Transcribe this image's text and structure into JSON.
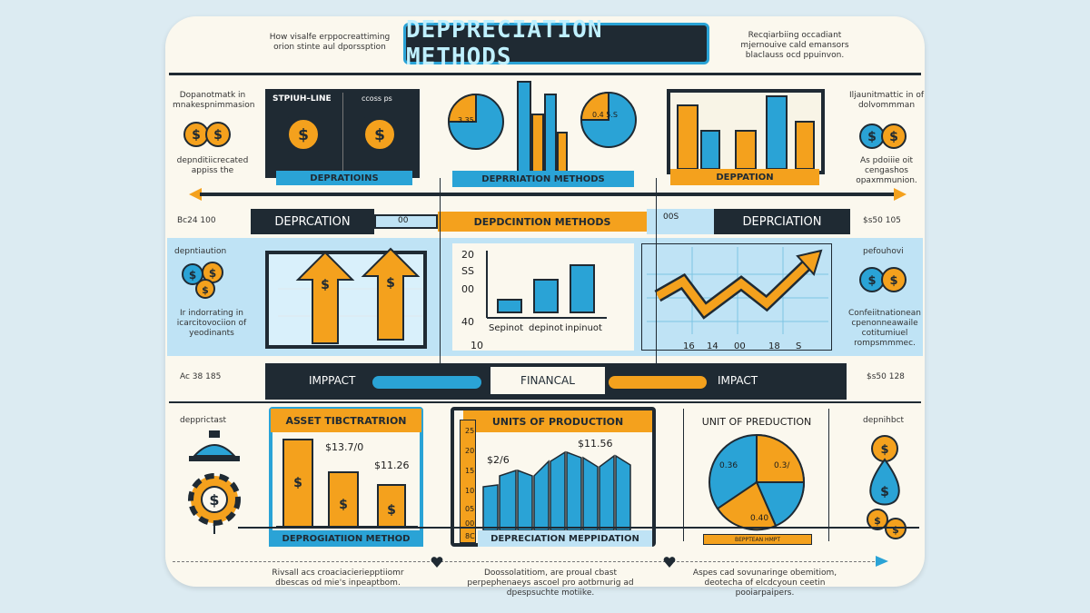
{
  "title": "DEPPRECIATION METHODS",
  "top_notes": {
    "left": "How visalfe erppocreattiming orion stinte aul dporssption",
    "right": "Recqiarbiing occadiant mjernouive cald emansors blaclauss ocd ppuinvon."
  },
  "left_notes": {
    "n1": "Dopanotmatk in mnakespnimmasion",
    "n2": "depnditiicrecated appiss the",
    "n3": "Bc24 100",
    "n4": "depntiaution",
    "n5": "Ir indorrating in icarcitovociion of yeodinants",
    "n6": "Ac 38 185",
    "n7": "depprictast"
  },
  "right_notes": {
    "n1": "Iljaunitmattic in of dolvommman",
    "n2": "As pdoiiie oit cengashos opaxmmunion.",
    "n3": "$s50 105",
    "n4": "pefouhovi",
    "n5": "Confeiitnationean cpenonneawaile cotitumiuel rompsmmmec.",
    "n6": "$s50 128",
    "n7": "depnihbct"
  },
  "row1": {
    "panel1_head_left": "STPIUH–LINE",
    "panel1_head_right": "ccoss ps",
    "panel1_strip": "DEPRATIOINS",
    "panel2_strip": "DEPRRIATION METHODS",
    "panel2_pie1": "3.35",
    "panel2_pie2": "0.4 5.S",
    "panel3_strip": "DEPPATION"
  },
  "bar1": {
    "left": "DEPRCATION",
    "mid_small": "00",
    "mid": "DEPDCINTION METHODS",
    "mid_right": "00S",
    "right": "DEPRCIATION"
  },
  "row2": {
    "chart_y_labels": [
      "20",
      "SS",
      "00",
      "40"
    ],
    "chart_x_start": "10",
    "chart_x_labels": [
      "Sepinot",
      "depinot",
      "inpinuot"
    ],
    "right_x_labels": [
      "16",
      "14",
      "00",
      "18",
      "S"
    ]
  },
  "bar2": {
    "left": "IMPPACT",
    "mid": "FINANCAL",
    "right": "IMPACT"
  },
  "row3": {
    "p1_title": "ASSET TIBCTRATRION",
    "p1_v1": "$13.7/0",
    "p1_v2": "$11.26",
    "p1_strip": "DEPROGIATIION METHOD",
    "p2_title": "UNITS OF PRODUCTION",
    "p2_v1": "$2/6",
    "p2_v2": "$11.56",
    "p2_y": [
      "25",
      "20",
      "15",
      "10",
      "05",
      "00",
      "8C"
    ],
    "p2_strip": "DEPRECIATION MEPPIDATION",
    "p3_title": "UNIT OF PREDUCTION",
    "p3_pie": [
      "0.36",
      "0.3/",
      "0.40"
    ],
    "p3_strip": "BEPPTEAN HMPT"
  },
  "bottom_notes": {
    "left": "Rivsall acs croaciacieriepptiiomr dbescas od mie's inpeaptbom.",
    "mid": "Doossolatitiom, are proual cbast perpephenaeys ascoel pro aotbrnurig ad dpespsuchte motiike.",
    "right": "Aspes cad sovunaringe obemitiom, deotecha of elcdcyoun ceetin pooiarpaipers."
  },
  "colors": {
    "orange": "#f4a11d",
    "blue": "#2aa3d6",
    "dark": "#1f2a33",
    "light_blue": "#bfe3f5",
    "cream": "#fbf8ee"
  }
}
